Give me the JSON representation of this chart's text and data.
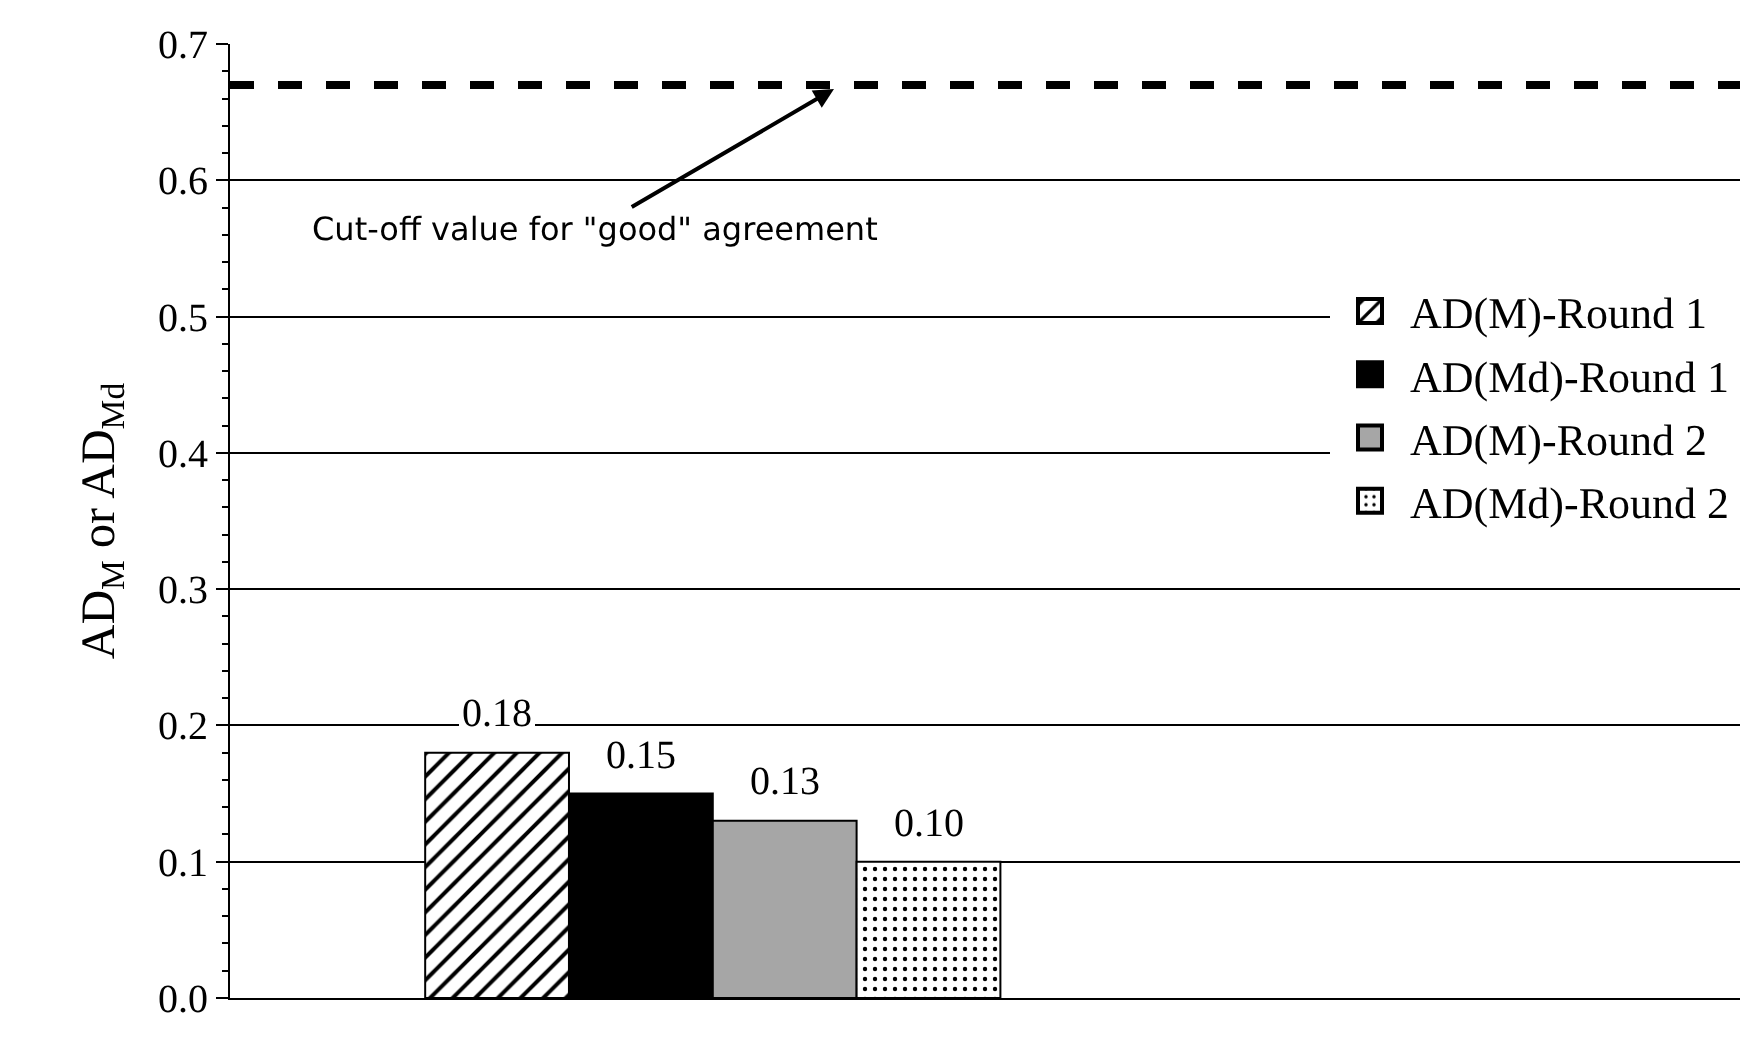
{
  "chart_data": {
    "type": "bar",
    "ylabel": "AD$_{M}$ or AD$_{Md}$",
    "categories": [
      null
    ],
    "series": [
      {
        "name": "AD(M)-Round 1",
        "color": "#000000",
        "values": [
          0.18
        ],
        "value_labels": [
          "0.18"
        ]
      },
      {
        "name": "AD(Md)-Round 1",
        "color": "#000000",
        "values": [
          0.15
        ],
        "value_labels": [
          "0.15"
        ]
      },
      {
        "name": "AD(M)-Round 2",
        "color": "#a6a6a6",
        "values": [
          0.13
        ],
        "value_labels": [
          "0.13"
        ]
      },
      {
        "name": "AD(Md)-Round 2",
        "color": "#000000",
        "values": [
          0.1
        ],
        "value_labels": [
          "0.10"
        ]
      }
    ],
    "ylim": [
      0,
      0.7
    ],
    "yticks": [
      {
        "value": 0,
        "label": "0.0"
      },
      0.1,
      0.2,
      0.3,
      0.4,
      0.5,
      0.6,
      0.7
    ],
    "grid": "y",
    "legend": "right",
    "ref_lines": [
      {
        "axis": "y",
        "value": 0.67,
        "label": "Cut-off value for \"good\" agreement",
        "color": "#000000",
        "line_style": "dashed"
      }
    ]
  }
}
